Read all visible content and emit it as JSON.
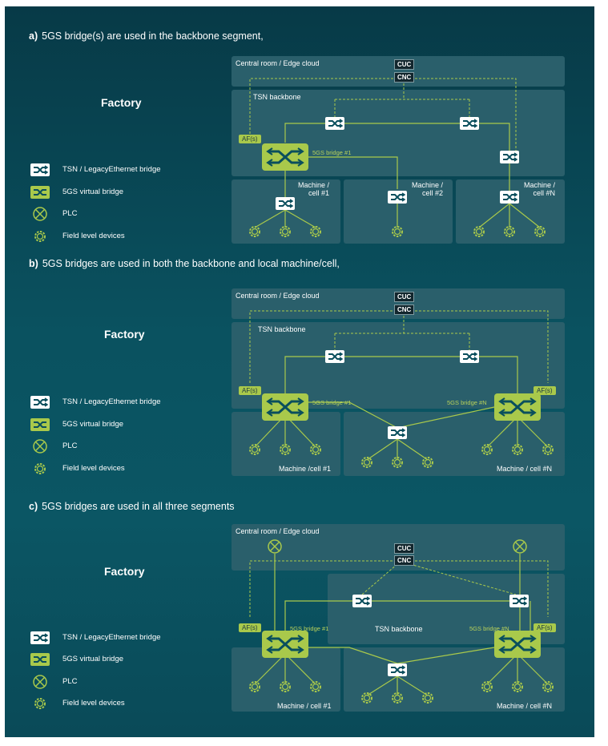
{
  "sections": [
    {
      "letter": "a)",
      "caption": "5GS bridge(s) are used in the backbone segment,"
    },
    {
      "letter": "b)",
      "caption": "5GS bridges are used in both the backbone and local machine/cell,"
    },
    {
      "letter": "c)",
      "caption": "5GS bridges are used in all three segments"
    }
  ],
  "factory": "Factory",
  "legend": {
    "tsn": "TSN / LegacyEthernet bridge",
    "fivegs": "5GS virtual bridge",
    "plc": "PLC",
    "field": "Field level devices"
  },
  "labels": {
    "central": "Central room / Edge cloud",
    "cuc": "CUC",
    "cnc": "CNC",
    "tsn_backbone": "TSN backbone",
    "af": "AF(s)",
    "bridge1": "5GS bridge #1",
    "bridgeN": "5GS bridge #N",
    "mc1_a": "Machine /",
    "mc1_b": "cell #1",
    "mc2_b": "cell #2",
    "mcN_b": "cell #N",
    "mc1_full": "Machine / cell #1",
    "mcN_full": "Machine / cell #N",
    "mc1_full_b": "Machine /cell #1"
  },
  "colors": {
    "bg": "#0a4f5d",
    "green": "#a9c94b",
    "panel": "#2a5f6b"
  }
}
